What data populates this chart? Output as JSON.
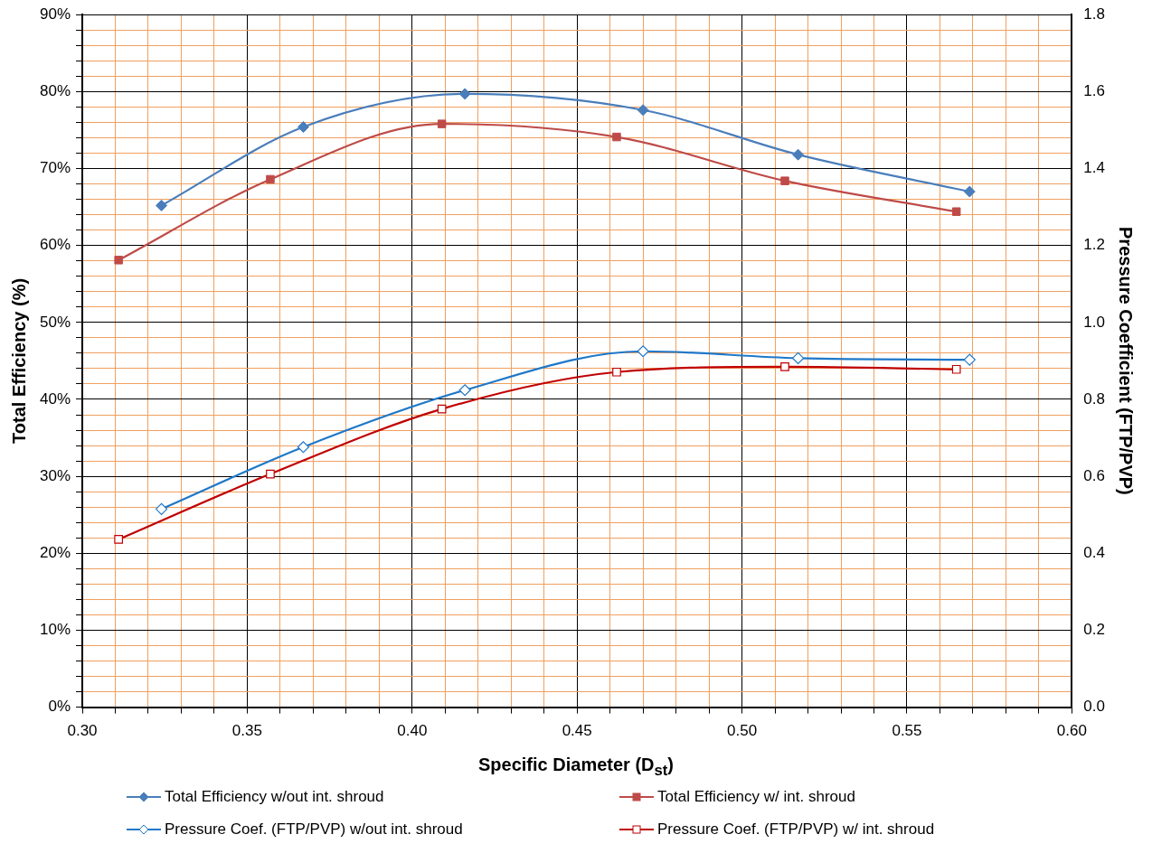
{
  "chart_data": {
    "type": "line",
    "xlabel": "Specific Diameter (D$_{st}$)",
    "ylabel": "Total Efficiency (%)",
    "y2label": "Pressure Coefficient (FTP/PVP)",
    "xlim": [
      0.3,
      0.6
    ],
    "xticks": [
      {
        "value": 0.3,
        "label": "0.30"
      },
      {
        "value": 0.31,
        "label": null
      },
      {
        "value": 0.32,
        "label": null
      },
      {
        "value": 0.33,
        "label": null
      },
      {
        "value": 0.34,
        "label": null
      },
      {
        "value": 0.35,
        "label": "0.35"
      },
      {
        "value": 0.36,
        "label": null
      },
      {
        "value": 0.37,
        "label": null
      },
      {
        "value": 0.38,
        "label": null
      },
      {
        "value": 0.39,
        "label": null
      },
      {
        "value": 0.4,
        "label": "0.40"
      },
      {
        "value": 0.41,
        "label": null
      },
      {
        "value": 0.42,
        "label": null
      },
      {
        "value": 0.43,
        "label": null
      },
      {
        "value": 0.44,
        "label": null
      },
      {
        "value": 0.45,
        "label": "0.45"
      },
      {
        "value": 0.46,
        "label": null
      },
      {
        "value": 0.47,
        "label": null
      },
      {
        "value": 0.48,
        "label": null
      },
      {
        "value": 0.49,
        "label": null
      },
      {
        "value": 0.5,
        "label": "0.50"
      },
      {
        "value": 0.51,
        "label": null
      },
      {
        "value": 0.52,
        "label": null
      },
      {
        "value": 0.53,
        "label": null
      },
      {
        "value": 0.54,
        "label": null
      },
      {
        "value": 0.55,
        "label": "0.55"
      },
      {
        "value": 0.56,
        "label": null
      },
      {
        "value": 0.57,
        "label": null
      },
      {
        "value": 0.58,
        "label": null
      },
      {
        "value": 0.59,
        "label": null
      },
      {
        "value": 0.6,
        "label": "0.60"
      }
    ],
    "ylim": [
      0,
      90
    ],
    "yticks": [
      {
        "value": 0,
        "label": "0%"
      },
      {
        "value": 2,
        "label": null
      },
      {
        "value": 4,
        "label": null
      },
      {
        "value": 6,
        "label": null
      },
      {
        "value": 8,
        "label": null
      },
      {
        "value": 10,
        "label": "10%"
      },
      {
        "value": 12,
        "label": null
      },
      {
        "value": 14,
        "label": null
      },
      {
        "value": 16,
        "label": null
      },
      {
        "value": 18,
        "label": null
      },
      {
        "value": 20,
        "label": "20%"
      },
      {
        "value": 22,
        "label": null
      },
      {
        "value": 24,
        "label": null
      },
      {
        "value": 26,
        "label": null
      },
      {
        "value": 28,
        "label": null
      },
      {
        "value": 30,
        "label": "30%"
      },
      {
        "value": 32,
        "label": null
      },
      {
        "value": 34,
        "label": null
      },
      {
        "value": 36,
        "label": null
      },
      {
        "value": 38,
        "label": null
      },
      {
        "value": 40,
        "label": "40%"
      },
      {
        "value": 42,
        "label": null
      },
      {
        "value": 44,
        "label": null
      },
      {
        "value": 46,
        "label": null
      },
      {
        "value": 48,
        "label": null
      },
      {
        "value": 50,
        "label": "50%"
      },
      {
        "value": 52,
        "label": null
      },
      {
        "value": 54,
        "label": null
      },
      {
        "value": 56,
        "label": null
      },
      {
        "value": 58,
        "label": null
      },
      {
        "value": 60,
        "label": "60%"
      },
      {
        "value": 62,
        "label": null
      },
      {
        "value": 64,
        "label": null
      },
      {
        "value": 66,
        "label": null
      },
      {
        "value": 68,
        "label": null
      },
      {
        "value": 70,
        "label": "70%"
      },
      {
        "value": 72,
        "label": null
      },
      {
        "value": 74,
        "label": null
      },
      {
        "value": 76,
        "label": null
      },
      {
        "value": 78,
        "label": null
      },
      {
        "value": 80,
        "label": "80%"
      },
      {
        "value": 82,
        "label": null
      },
      {
        "value": 84,
        "label": null
      },
      {
        "value": 86,
        "label": null
      },
      {
        "value": 88,
        "label": null
      },
      {
        "value": 90,
        "label": "90%"
      }
    ],
    "y2lim": [
      0,
      1.8
    ],
    "y2ticks": [
      {
        "value": 0,
        "label": "0.0"
      },
      {
        "value": 0.2,
        "label": "0.2"
      },
      {
        "value": 0.4,
        "label": "0.4"
      },
      {
        "value": 0.6,
        "label": "0.6"
      },
      {
        "value": 0.8,
        "label": "0.8"
      },
      {
        "value": 1.0,
        "label": "1.0"
      },
      {
        "value": 1.2,
        "label": "1.2"
      },
      {
        "value": 1.4,
        "label": "1.4"
      },
      {
        "value": 1.6,
        "label": "1.6"
      },
      {
        "value": 1.8,
        "label": "1.8"
      }
    ],
    "grid": true,
    "legend": "bottom",
    "series": [
      {
        "name": "Total Efficiency w/out int. shroud",
        "color": "#4a7ebb",
        "marker": "diamond",
        "x": [
          0.324,
          0.367,
          0.416,
          0.47,
          0.517,
          0.569
        ],
        "values": [
          65.2,
          75.4,
          79.7,
          77.6,
          71.8,
          67.0
        ]
      },
      {
        "name": "Total Efficiency w/ int. shroud",
        "color": "#be4b48",
        "marker": "square",
        "x": [
          0.311,
          0.357,
          0.409,
          0.462,
          0.513,
          0.565
        ],
        "values": [
          58.1,
          68.6,
          75.8,
          74.1,
          68.4,
          64.4
        ]
      },
      {
        "name": "Pressure Coef. (FTP/PVP) w/out int. shroud",
        "color": "#1f78c8",
        "marker": "diamond",
        "axis": "y2",
        "x": [
          0.324,
          0.367,
          0.416,
          0.47,
          0.517,
          0.569
        ],
        "values": [
          0.515,
          0.676,
          0.824,
          0.925,
          0.907,
          0.903
        ]
      },
      {
        "name": "Pressure Coef. (FTP/PVP) w/ int. shroud",
        "color": "#c00000",
        "marker": "square",
        "axis": "y2",
        "x": [
          0.311,
          0.357,
          0.409,
          0.462,
          0.513,
          0.565
        ],
        "values": [
          0.436,
          0.606,
          0.775,
          0.871,
          0.885,
          0.878
        ]
      }
    ]
  }
}
